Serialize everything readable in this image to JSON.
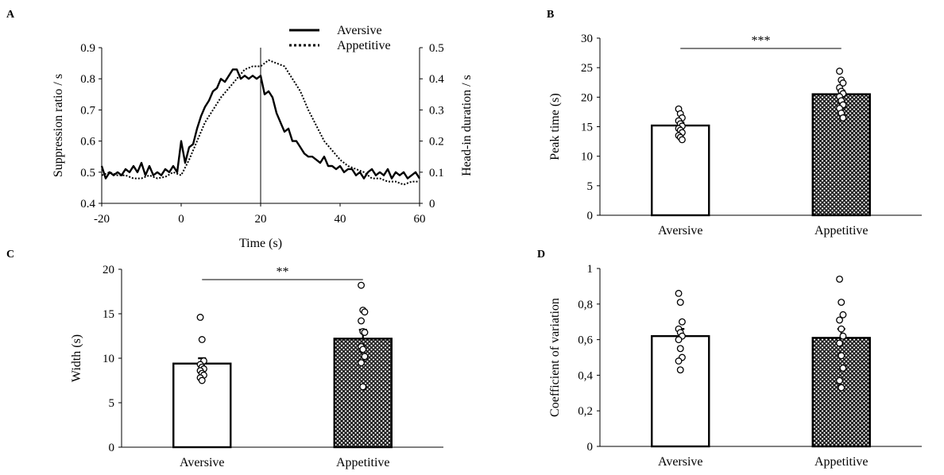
{
  "chart_data": [
    {
      "panel": "A",
      "type": "line",
      "xlabel": "Time (s)",
      "ylabel": "Suppression ratio / s",
      "ylabel_right": "Head-in duration / s",
      "xlim": [
        -20,
        60
      ],
      "ylim": [
        0.4,
        0.9
      ],
      "ylim_right": [
        0,
        0.5
      ],
      "xticks": [
        "-20",
        "0",
        "20",
        "40",
        "60"
      ],
      "yticks": [
        "0.4",
        "0.5",
        "0.6",
        "0.7",
        "0.8",
        "0.9"
      ],
      "yticks_right": [
        "0",
        "0.1",
        "0.2",
        "0.3",
        "0.4",
        "0.5"
      ],
      "vline_x": 20,
      "legend_position": "top-right",
      "series": [
        {
          "name": "Aversive",
          "style": "solid",
          "axis": "left",
          "x": [
            -20,
            -19,
            -18,
            -17,
            -16,
            -15,
            -14,
            -13,
            -12,
            -11,
            -10,
            -9,
            -8,
            -7,
            -6,
            -5,
            -4,
            -3,
            -2,
            -1,
            0,
            1,
            2,
            3,
            4,
            5,
            6,
            7,
            8,
            9,
            10,
            11,
            12,
            13,
            14,
            15,
            16,
            17,
            18,
            19,
            20,
            21,
            22,
            23,
            24,
            25,
            26,
            27,
            28,
            29,
            30,
            31,
            32,
            33,
            34,
            35,
            36,
            37,
            38,
            39,
            40,
            41,
            42,
            43,
            44,
            45,
            46,
            47,
            48,
            49,
            50,
            51,
            52,
            53,
            54,
            55,
            56,
            57,
            58,
            59,
            60
          ],
          "values": [
            0.52,
            0.48,
            0.5,
            0.49,
            0.5,
            0.49,
            0.51,
            0.5,
            0.52,
            0.5,
            0.53,
            0.49,
            0.52,
            0.49,
            0.5,
            0.49,
            0.51,
            0.5,
            0.52,
            0.5,
            0.6,
            0.53,
            0.58,
            0.59,
            0.64,
            0.68,
            0.71,
            0.73,
            0.76,
            0.77,
            0.8,
            0.79,
            0.81,
            0.83,
            0.83,
            0.8,
            0.81,
            0.8,
            0.81,
            0.8,
            0.81,
            0.75,
            0.76,
            0.74,
            0.69,
            0.66,
            0.63,
            0.64,
            0.6,
            0.6,
            0.58,
            0.56,
            0.55,
            0.55,
            0.54,
            0.53,
            0.55,
            0.52,
            0.52,
            0.51,
            0.52,
            0.5,
            0.51,
            0.51,
            0.49,
            0.5,
            0.48,
            0.5,
            0.51,
            0.49,
            0.5,
            0.49,
            0.51,
            0.48,
            0.5,
            0.49,
            0.5,
            0.48,
            0.49,
            0.5,
            0.48
          ]
        },
        {
          "name": "Appetitive",
          "style": "dotted",
          "axis": "right",
          "x": [
            -20,
            -18,
            -16,
            -14,
            -12,
            -10,
            -8,
            -6,
            -4,
            -2,
            0,
            2,
            4,
            6,
            8,
            10,
            12,
            14,
            16,
            18,
            20,
            22,
            24,
            26,
            28,
            30,
            32,
            34,
            36,
            38,
            40,
            42,
            44,
            46,
            48,
            50,
            52,
            54,
            56,
            58,
            60
          ],
          "values": [
            0.09,
            0.1,
            0.09,
            0.09,
            0.08,
            0.08,
            0.09,
            0.08,
            0.085,
            0.1,
            0.09,
            0.14,
            0.2,
            0.26,
            0.3,
            0.34,
            0.37,
            0.4,
            0.43,
            0.44,
            0.44,
            0.46,
            0.45,
            0.44,
            0.4,
            0.36,
            0.3,
            0.25,
            0.2,
            0.17,
            0.14,
            0.12,
            0.11,
            0.1,
            0.08,
            0.08,
            0.07,
            0.07,
            0.06,
            0.07,
            0.07
          ]
        }
      ]
    },
    {
      "panel": "B",
      "type": "bar",
      "categories": [
        "Aversive",
        "Appetitive"
      ],
      "values": [
        15.2,
        20.5
      ],
      "sem": [
        0.5,
        0.6
      ],
      "ylabel": "Peak time (s)",
      "ylim": [
        0,
        30
      ],
      "yticks": [
        "0",
        "5",
        "10",
        "15",
        "20",
        "25",
        "30"
      ],
      "significance": "***",
      "points": [
        [
          18.0,
          17.2,
          16.5,
          16.0,
          15.5,
          15.1,
          14.7,
          14.4,
          14.0,
          13.5,
          13.2,
          12.8
        ],
        [
          24.4,
          22.9,
          22.4,
          21.6,
          21.0,
          20.6,
          20.1,
          19.4,
          18.7,
          18.1,
          17.3,
          16.5
        ]
      ]
    },
    {
      "panel": "C",
      "type": "bar",
      "categories": [
        "Aversive",
        "Appetitive"
      ],
      "values": [
        9.4,
        12.2
      ],
      "sem": [
        0.6,
        1.0
      ],
      "ylabel": "Width (s)",
      "ylim": [
        0,
        20
      ],
      "yticks": [
        "0",
        "5",
        "10",
        "15",
        "20"
      ],
      "significance": "**",
      "points": [
        [
          14.6,
          12.1,
          9.7,
          9.3,
          9.0,
          8.8,
          8.6,
          8.3,
          8.1,
          7.8,
          7.5
        ],
        [
          18.2,
          15.4,
          15.2,
          14.2,
          13.0,
          12.9,
          11.3,
          11.0,
          10.2,
          9.5,
          6.8
        ]
      ]
    },
    {
      "panel": "D",
      "type": "bar",
      "categories": [
        "Aversive",
        "Appetitive"
      ],
      "values": [
        0.62,
        0.61
      ],
      "sem": [
        0.04,
        0.05
      ],
      "ylabel": "Coefficient of variation",
      "ylim": [
        0,
        1
      ],
      "yticks": [
        "0",
        "0,2",
        "0,4",
        "0,6",
        "0,8",
        "1"
      ],
      "points": [
        [
          0.86,
          0.81,
          0.7,
          0.66,
          0.64,
          0.62,
          0.6,
          0.55,
          0.5,
          0.48,
          0.43
        ],
        [
          0.94,
          0.81,
          0.74,
          0.71,
          0.66,
          0.62,
          0.58,
          0.51,
          0.44,
          0.37,
          0.33
        ]
      ]
    }
  ],
  "panels": {
    "a": "A",
    "b": "B",
    "c": "C",
    "d": "D"
  }
}
